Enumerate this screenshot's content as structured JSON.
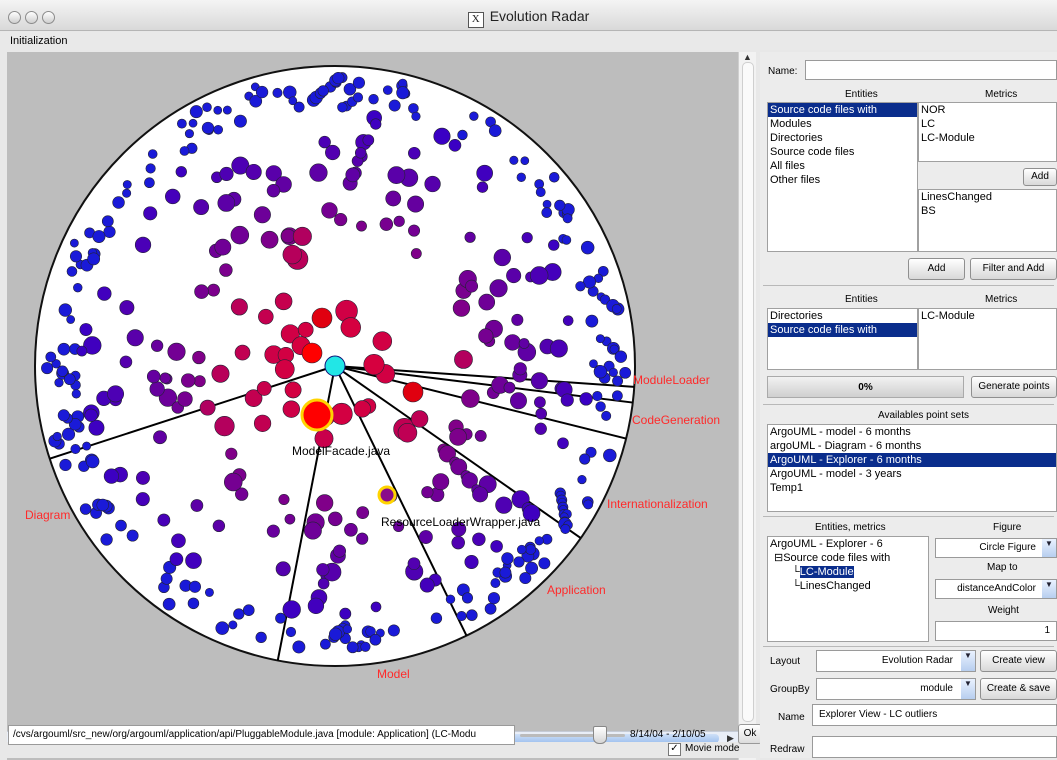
{
  "window": {
    "title": "Evolution Radar"
  },
  "menu": {
    "initialization": "Initialization"
  },
  "radar": {
    "module_labels": [
      "ModuleLoader",
      "CodeGeneration",
      "Internationalization",
      "Application",
      "Model",
      "Diagram"
    ],
    "file_labels": [
      "ModelFacade.java",
      "ResourceLoaderWrapper.java"
    ]
  },
  "statusbar": {
    "path": "/cvs/argouml/src_new/org/argouml/application/api/PluggableModule.java [module: Application] (LC-Modu",
    "date_range": "8/14/04 - 2/10/05",
    "ok_label": "Ok",
    "movie_mode": "Movie mode"
  },
  "panel": {
    "name_label": "Name:",
    "name_value": "",
    "entities_header": "Entities",
    "metrics_header": "Metrics",
    "entities_list": [
      "Source code files with",
      "Modules",
      "Directories",
      "Source code files",
      "All files",
      "Other files"
    ],
    "metrics_list": [
      "NOR",
      "LC",
      "LC-Module"
    ],
    "add_small": "Add",
    "selected_metrics": [
      "LinesChanged",
      "BS"
    ],
    "add_label": "Add",
    "filter_add_label": "Filter and Add",
    "entities_header2": "Entities",
    "metrics_header2": "Metrics",
    "entities_list2": [
      "Directories",
      "Source code files with"
    ],
    "metrics_list2": [
      "LC-Module"
    ],
    "progress": "0%",
    "generate_label": "Generate points",
    "available_header": "Availables point sets",
    "point_sets": [
      "ArgoUML - model - 6 months",
      "argoUML - Diagram - 6 months",
      "ArgoUML - Explorer - 6 months",
      "ArgoUML - model - 3 years",
      "Temp1"
    ],
    "entities_metrics_header": "Entities, metrics",
    "tree": [
      "ArgoUML - Explorer - 6",
      "Source code files with",
      "LC-Module",
      "LinesChanged"
    ],
    "figure_label": "Figure",
    "figure_value": "Circle Figure",
    "mapto_label": "Map to",
    "mapto_value": "distanceAndColor",
    "weight_label": "Weight",
    "weight_value": "1",
    "layout_label": "Layout",
    "layout_value": "Evolution Radar",
    "create_view": "Create view",
    "groupby_label": "GroupBy",
    "groupby_value": "module",
    "create_save": "Create & save",
    "viewname_label": "Name",
    "viewname_value": "Explorer View - LC outliers",
    "redraw_label": "Redraw"
  },
  "colors": {
    "selection": "#0a2d8c",
    "module_label": "#ff2a2a",
    "center": "#22e6e6"
  },
  "icons": [
    "close-traffic-light",
    "minimize-traffic-light",
    "zoom-traffic-light",
    "x11-icon",
    "checkbox-icon",
    "dropdown-arrow-icon"
  ]
}
